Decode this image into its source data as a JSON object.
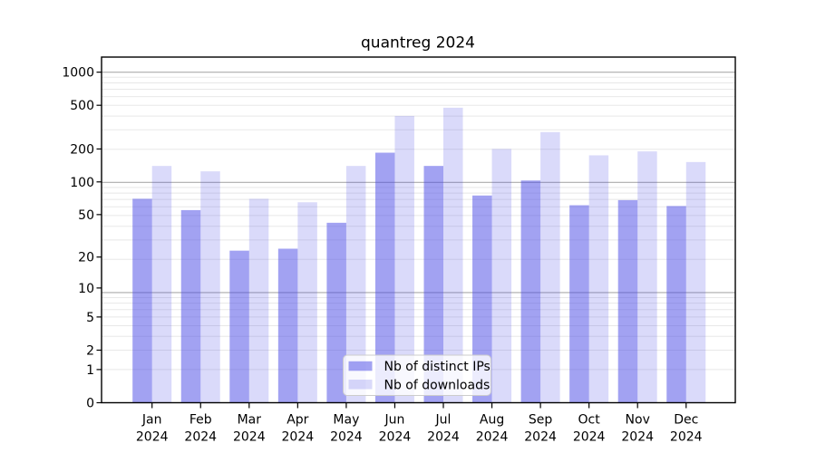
{
  "window": {
    "background": "#ffffff"
  },
  "chart_data": {
    "type": "bar",
    "title": "quantreg 2024",
    "categories": [
      "Jan",
      "Feb",
      "Mar",
      "Apr",
      "May",
      "Jun",
      "Jul",
      "Aug",
      "Sep",
      "Oct",
      "Nov",
      "Dec"
    ],
    "category_year": "2024",
    "series": [
      {
        "name": "Nb of distinct IPs",
        "color": "#4646e6",
        "opacity": 0.5,
        "values": [
          70,
          55,
          23,
          24,
          42,
          185,
          140,
          75,
          103,
          61,
          68,
          60
        ]
      },
      {
        "name": "Nb of downloads",
        "color": "#4646e6",
        "opacity": 0.2,
        "values": [
          140,
          125,
          70,
          65,
          140,
          400,
          475,
          200,
          285,
          175,
          190,
          152
        ]
      }
    ],
    "yscale": "log1p",
    "ylim": [
      0,
      1370
    ],
    "yticks": [
      0,
      1,
      2,
      5,
      10,
      20,
      50,
      100,
      200,
      500,
      1000
    ],
    "grid": {
      "on": true,
      "minor_color": "#e8e8e8",
      "major_color": "#ababab"
    },
    "axis_color": "#000000",
    "legend": {
      "position": "bottom-center",
      "background": "rgba(255,255,255,0.8)",
      "border": "#cccccc"
    }
  }
}
